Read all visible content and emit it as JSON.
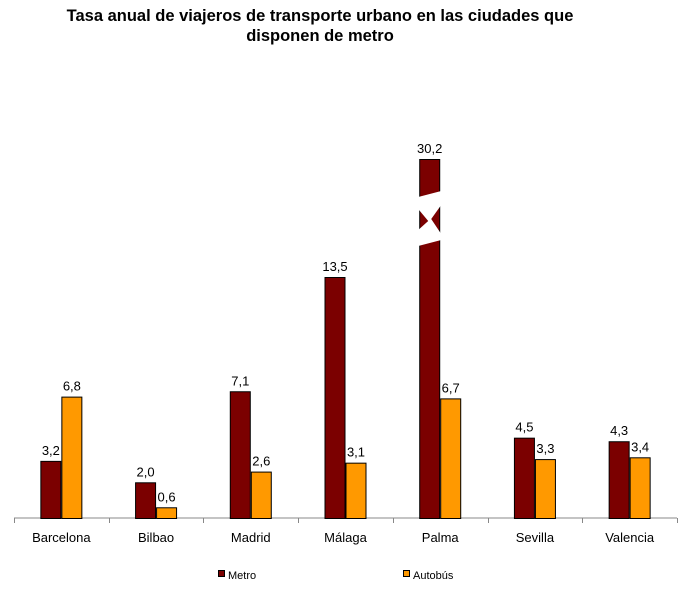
{
  "chart_data": {
    "type": "bar",
    "title_lines": [
      "Tasa anual de viajeros de transporte urbano en las ciudades que",
      "disponen de metro"
    ],
    "categories": [
      "Barcelona",
      "Bilbao",
      "Madrid",
      "Málaga",
      "Palma",
      "Sevilla",
      "Valencia"
    ],
    "series": [
      {
        "name": "Metro",
        "color": "#7B0000",
        "values": [
          3.2,
          2.0,
          7.1,
          13.5,
          30.2,
          4.5,
          4.3
        ],
        "labels": [
          "3,2",
          "2,0",
          "7,1",
          "13,5",
          "30,2",
          "4,5",
          "4,3"
        ]
      },
      {
        "name": "Autobús",
        "color": "#FF9900",
        "values": [
          6.8,
          0.6,
          2.6,
          3.1,
          6.7,
          3.3,
          3.4
        ],
        "labels": [
          "6,8",
          "0,6",
          "2,6",
          "3,1",
          "6,7",
          "3,3",
          "3,4"
        ]
      }
    ],
    "axis_break": {
      "category": "Palma",
      "series": "Metro",
      "break_symbol": "zigzag"
    },
    "xlabel": "",
    "ylabel": "",
    "ylim": [
      0,
      16
    ],
    "grid": false,
    "legend_position": "bottom"
  }
}
